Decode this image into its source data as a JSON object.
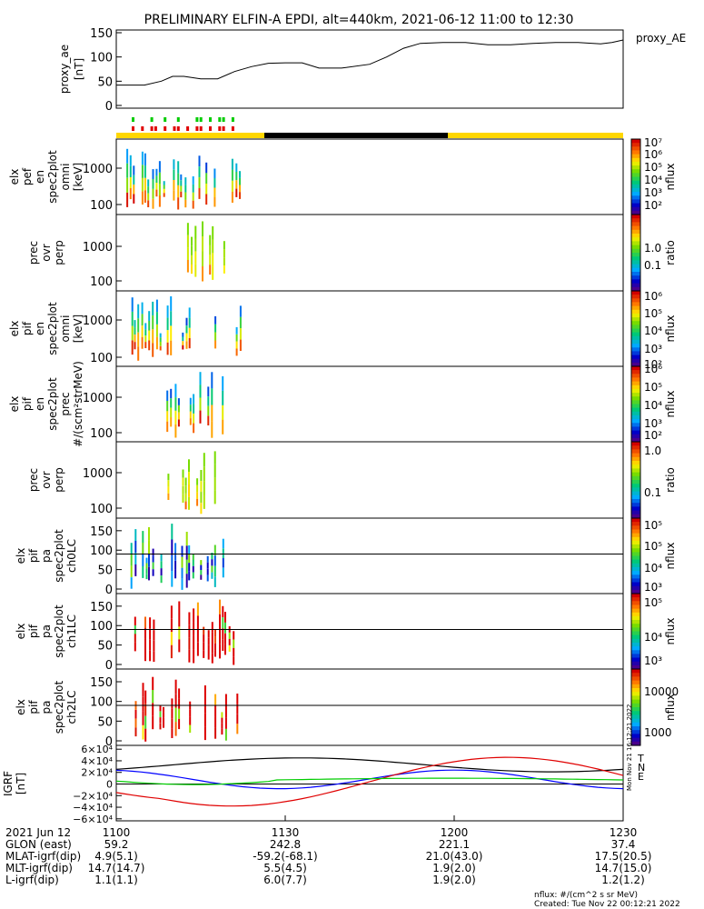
{
  "title": "PRELIMINARY ELFIN-A EPDI, alt=440km, 2021-06-12 11:00 to 12:30",
  "colors": {
    "orbit_yellow": "#ffd700",
    "orbit_black": "#000000",
    "red": "#e00000",
    "green": "#00cc00",
    "blue": "#0000ff"
  },
  "chart_data": [
    {
      "type": "line",
      "name": "proxy_ae",
      "title": "proxy_AE",
      "ylabel": [
        "proxy_ae",
        "[nT]"
      ],
      "ylim": [
        0,
        150
      ],
      "yticks": [
        "150",
        "100",
        "50",
        "0"
      ],
      "x_minutes": [
        0,
        5,
        8,
        10,
        12,
        15,
        18,
        21,
        24,
        27,
        30,
        33,
        36,
        40,
        45,
        48,
        51,
        54,
        58,
        62,
        66,
        70,
        74,
        78,
        82,
        86,
        88,
        90
      ],
      "values": [
        42,
        42,
        50,
        60,
        60,
        55,
        55,
        70,
        80,
        87,
        88,
        88,
        77,
        77,
        85,
        100,
        118,
        128,
        130,
        130,
        125,
        125,
        128,
        130,
        130,
        127,
        130,
        135
      ]
    },
    {
      "type": "heatmap",
      "name": "elx_pef_en_spec2plot_omni",
      "ylabel": [
        "elx",
        "pef",
        "en",
        "spec2plot",
        "omni",
        "[keV]"
      ],
      "yticks": [
        "1000",
        "100"
      ],
      "colorbar": {
        "label": "nflux",
        "ticks": [
          "10⁷",
          "10⁶",
          "10⁵",
          "10⁴",
          "10³",
          "10²"
        ]
      }
    },
    {
      "type": "heatmap",
      "name": "prec_ovr_perp_electrons",
      "ylabel": [
        "prec",
        "ovr",
        "perp"
      ],
      "yticks": [
        "1000",
        "100"
      ],
      "colorbar": {
        "label": "ratio",
        "ticks": [
          "1.0",
          "0.1"
        ]
      }
    },
    {
      "type": "heatmap",
      "name": "elx_pif_en_spec2plot_omni",
      "ylabel": [
        "elx",
        "pif",
        "en",
        "spec2plot",
        "omni",
        "[keV]"
      ],
      "yticks": [
        "1000",
        "100"
      ],
      "colorbar": {
        "label": "nflux",
        "ticks": [
          "10⁶",
          "10⁵",
          "10⁴",
          "10³",
          "10²"
        ]
      }
    },
    {
      "type": "heatmap",
      "name": "elx_pif_en_spec2plot_prec",
      "ylabel": [
        "elx",
        "pif",
        "en",
        "spec2plot",
        "prec",
        "#/(scm²strMeV)"
      ],
      "yticks": [
        "1000",
        "100"
      ],
      "colorbar": {
        "label": "nflux",
        "ticks": [
          "10⁶",
          "10⁵",
          "10⁴",
          "10³",
          "10²"
        ]
      }
    },
    {
      "type": "heatmap",
      "name": "prec_ovr_perp_ions",
      "ylabel": [
        "prec",
        "ovr",
        "perp"
      ],
      "yticks": [
        "1000",
        "100"
      ],
      "colorbar": {
        "label": "ratio",
        "ticks": [
          "1.0",
          "0.1"
        ]
      }
    },
    {
      "type": "heatmap",
      "name": "elx_pif_pa_spec2plot_ch0LC",
      "ylabel": [
        "elx",
        "pif",
        "pa",
        "spec2plot",
        "ch0LC"
      ],
      "yticks": [
        "150",
        "100",
        "50",
        "0"
      ],
      "colorbar": {
        "label": "nflux",
        "ticks": [
          "10⁵",
          "10⁵",
          "10⁴",
          "10³"
        ]
      }
    },
    {
      "type": "heatmap",
      "name": "elx_pif_pa_spec2plot_ch1LC",
      "ylabel": [
        "elx",
        "pif",
        "pa",
        "spec2plot",
        "ch1LC"
      ],
      "yticks": [
        "150",
        "100",
        "50",
        "0"
      ],
      "colorbar": {
        "label": "nflux",
        "ticks": [
          "10⁵",
          "10⁴",
          "10³"
        ]
      }
    },
    {
      "type": "heatmap",
      "name": "elx_pif_pa_spec2plot_ch2LC",
      "ylabel": [
        "elx",
        "pif",
        "pa",
        "spec2plot",
        "ch2LC"
      ],
      "yticks": [
        "150",
        "100",
        "50",
        "0"
      ],
      "colorbar": {
        "label": "nflux",
        "ticks": [
          "10000",
          "1000"
        ]
      }
    },
    {
      "type": "line",
      "name": "IGRF",
      "ylabel": [
        "IGRF",
        "[nT]"
      ],
      "ylim": [
        -65000,
        65000
      ],
      "yticks": [
        "6×10⁴",
        "4×10⁴",
        "2×10⁴",
        "0",
        "−2×10⁴",
        "−4×10⁴",
        "−6×10⁴"
      ],
      "legend": [
        "T",
        "N",
        "E"
      ],
      "series": [
        {
          "name": "T",
          "color": "#000000"
        },
        {
          "name": "N",
          "color": "#0000ff"
        },
        {
          "name": "E",
          "color": "#e00000"
        },
        {
          "name": "",
          "color": "#00cc00"
        }
      ]
    }
  ],
  "xaxis": {
    "rows": [
      {
        "label": "2021 Jun 12",
        "values": [
          "1100",
          "1130",
          "1200",
          "1230"
        ]
      },
      {
        "label": "GLON (east)",
        "values": [
          "59.2",
          "242.8",
          "221.1",
          "37.4"
        ]
      },
      {
        "label": "MLAT-igrf(dip)",
        "values": [
          "4.9(5.1)",
          "-59.2(-68.1)",
          "21.0(43.0)",
          "17.5(20.5)"
        ]
      },
      {
        "label": "MLT-igrf(dip)",
        "values": [
          "14.7(14.7)",
          "5.5(4.5)",
          "1.9(2.0)",
          "14.7(15.0)"
        ]
      },
      {
        "label": "L-igrf(dip)",
        "values": [
          "1.1(1.1)",
          "6.0(7.7)",
          "1.9(2.0)",
          "1.2(1.2)"
        ]
      }
    ]
  },
  "footer": {
    "line1": "nflux: #/(cm^2 s sr MeV)",
    "line2": "Created: Tue Nov 22 00:12:21 2022",
    "side_stamp": "Mon Nov 21 16:12:21 2022"
  }
}
